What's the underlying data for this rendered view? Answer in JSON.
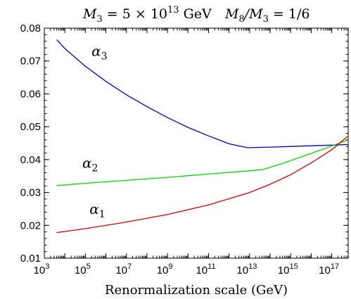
{
  "chart_data": {
    "type": "line",
    "title_parts": {
      "m3_left": "M",
      "m3_sub": "3",
      "m3_eq": " = 5 × 10",
      "m3_exp": "13",
      "m3_unit": " GeV",
      "ratio_m": "M",
      "ratio_sub_8": "8",
      "ratio_slash": "/M",
      "ratio_sub_3": "3",
      "ratio_val": " = 1/6"
    },
    "xlabel": "Renormalization scale (GeV)",
    "ylabel": "",
    "x_scale": "log10",
    "xlim_exp": [
      3,
      17.8
    ],
    "ylim": [
      0.01,
      0.08
    ],
    "x_ticks": [
      {
        "base": "10",
        "exp": "3",
        "value": 3
      },
      {
        "base": "10",
        "exp": "5",
        "value": 5
      },
      {
        "base": "10",
        "exp": "7",
        "value": 7
      },
      {
        "base": "10",
        "exp": "9",
        "value": 9
      },
      {
        "base": "10",
        "exp": "11",
        "value": 11
      },
      {
        "base": "10",
        "exp": "13",
        "value": 13
      },
      {
        "base": "10",
        "exp": "15",
        "value": 15
      },
      {
        "base": "10",
        "exp": "17",
        "value": 17
      }
    ],
    "y_ticks": [
      "0.01",
      "0.02",
      "0.03",
      "0.04",
      "0.05",
      "0.06",
      "0.07",
      "0.08"
    ],
    "grid": false,
    "series": [
      {
        "name": "α3",
        "label_sym": "α",
        "label_sub": "3",
        "label_at": [
          5.3,
          0.0715
        ],
        "color": "#0000cc",
        "points": [
          [
            3.6,
            0.0765
          ],
          [
            4,
            0.0738
          ],
          [
            5,
            0.0684
          ],
          [
            6,
            0.0638
          ],
          [
            7,
            0.0597
          ],
          [
            8,
            0.0561
          ],
          [
            9,
            0.0528
          ],
          [
            10,
            0.0498
          ],
          [
            11,
            0.0472
          ],
          [
            12,
            0.0448
          ],
          [
            12.9,
            0.0436
          ],
          [
            14,
            0.0438
          ],
          [
            15,
            0.044
          ],
          [
            16,
            0.0442
          ],
          [
            17,
            0.0444
          ],
          [
            17.8,
            0.0446
          ]
        ]
      },
      {
        "name": "α2",
        "label_sym": "α",
        "label_sub": "2",
        "label_at": [
          4.85,
          0.0375
        ],
        "color": "#00dd00",
        "points": [
          [
            3.6,
            0.0321
          ],
          [
            5,
            0.0328
          ],
          [
            7,
            0.0337
          ],
          [
            9,
            0.0346
          ],
          [
            11,
            0.0356
          ],
          [
            13,
            0.0366
          ],
          [
            13.6,
            0.0369
          ],
          [
            14.5,
            0.0386
          ],
          [
            15.5,
            0.0408
          ],
          [
            16.5,
            0.043
          ],
          [
            17.8,
            0.046
          ]
        ]
      },
      {
        "name": "α1",
        "label_sym": "α",
        "label_sub": "1",
        "label_at": [
          5.2,
          0.0235
        ],
        "color": "#dd0000",
        "points": [
          [
            3.6,
            0.0178
          ],
          [
            5,
            0.019
          ],
          [
            7,
            0.021
          ],
          [
            9,
            0.0233
          ],
          [
            11,
            0.0262
          ],
          [
            13,
            0.03
          ],
          [
            14,
            0.0325
          ],
          [
            15,
            0.0354
          ],
          [
            16,
            0.039
          ],
          [
            17,
            0.043
          ],
          [
            17.8,
            0.0472
          ]
        ]
      }
    ]
  }
}
